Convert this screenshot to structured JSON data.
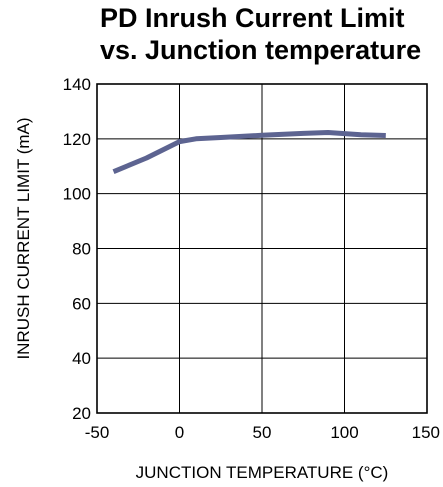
{
  "chart_data": {
    "type": "line",
    "title": [
      "PD Inrush Current Limit",
      "vs. Junction temperature"
    ],
    "xlabel": "JUNCTION TEMPERATURE (°C)",
    "ylabel": "INRUSH CURRENT LIMIT (mA)",
    "xlim": [
      -50,
      150
    ],
    "ylim": [
      20,
      140
    ],
    "xticks": [
      -50,
      0,
      50,
      100,
      150
    ],
    "yticks": [
      20,
      40,
      60,
      80,
      100,
      120,
      140
    ],
    "grid": true,
    "series": [
      {
        "color": "#5d6491",
        "x": [
          -40,
          -20,
          0,
          10,
          25,
          50,
          75,
          90,
          110,
          125
        ],
        "y": [
          108,
          113,
          119,
          120,
          120.5,
          121.3,
          122,
          122.3,
          121.5,
          121.2
        ]
      }
    ]
  }
}
